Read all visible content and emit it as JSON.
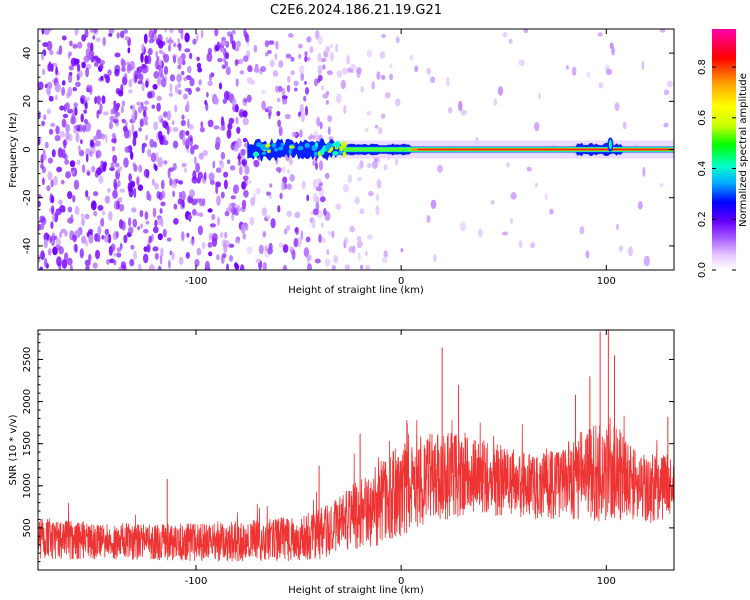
{
  "figure_title": "C2E6.2024.186.21.19.G21",
  "chart_data": [
    {
      "type": "heatmap",
      "title": "C2E6.2024.186.21.19.G21",
      "xlabel": "Height of straight line (km)",
      "ylabel": "Frequency (Hz)",
      "xlim": [
        -177,
        133
      ],
      "ylim": [
        -50,
        50
      ],
      "x_ticks": [
        -100,
        0,
        100
      ],
      "y_ticks": [
        -40,
        -20,
        0,
        20,
        40
      ],
      "colorbar": {
        "label": "Normalized spectral amplitude",
        "range": [
          0.0,
          0.95
        ],
        "ticks": [
          0.0,
          0.2,
          0.4,
          0.6,
          0.8
        ],
        "colormap": [
          "#ffffff",
          "#e6c9ff",
          "#a050ff",
          "#6600ff",
          "#0000ff",
          "#00aaff",
          "#00ffcc",
          "#00ff00",
          "#ccff00",
          "#ffff00",
          "#ff9900",
          "#ff0000",
          "#ff00aa"
        ]
      },
      "ridge": {
        "description": "narrow high-amplitude line near 0 Hz",
        "x_range": [
          -75,
          133
        ],
        "freq_hz": 0,
        "peak_amplitude": 0.9
      },
      "noise_region_x": [
        -177,
        -35
      ],
      "grid": false
    },
    {
      "type": "line",
      "xlabel": "Height of straight line (km)",
      "ylabel": "SNR (10 * v/v)",
      "xlim": [
        -177,
        133
      ],
      "ylim": [
        0,
        2850
      ],
      "x_ticks": [
        -100,
        0,
        100
      ],
      "y_ticks": [
        500,
        1000,
        1500,
        2000,
        2500
      ],
      "color": "#ee3333",
      "trend": {
        "x": [
          -177,
          -150,
          -120,
          -90,
          -60,
          -40,
          -30,
          -20,
          -10,
          0,
          10,
          20,
          30,
          40,
          50,
          60,
          70,
          80,
          90,
          100,
          110,
          120,
          133
        ],
        "mean": [
          380,
          340,
          330,
          330,
          360,
          420,
          520,
          650,
          800,
          950,
          1050,
          1100,
          1150,
          1100,
          1050,
          1000,
          1000,
          1050,
          1150,
          1200,
          1100,
          950,
          1000
        ],
        "spread": [
          250,
          220,
          220,
          230,
          260,
          300,
          350,
          450,
          500,
          550,
          550,
          550,
          500,
          450,
          420,
          400,
          400,
          450,
          550,
          650,
          500,
          400,
          380
        ]
      },
      "peaks": [
        {
          "x": -114,
          "y": 1080
        },
        {
          "x": -40,
          "y": 1240
        },
        {
          "x": -20,
          "y": 1620
        },
        {
          "x": 20,
          "y": 2640
        },
        {
          "x": 28,
          "y": 2200
        },
        {
          "x": 85,
          "y": 2080
        },
        {
          "x": 92,
          "y": 2300
        },
        {
          "x": 97,
          "y": 2830
        },
        {
          "x": 101,
          "y": 2850
        },
        {
          "x": 104,
          "y": 2550
        },
        {
          "x": 130,
          "y": 1820
        }
      ],
      "grid": false
    }
  ]
}
